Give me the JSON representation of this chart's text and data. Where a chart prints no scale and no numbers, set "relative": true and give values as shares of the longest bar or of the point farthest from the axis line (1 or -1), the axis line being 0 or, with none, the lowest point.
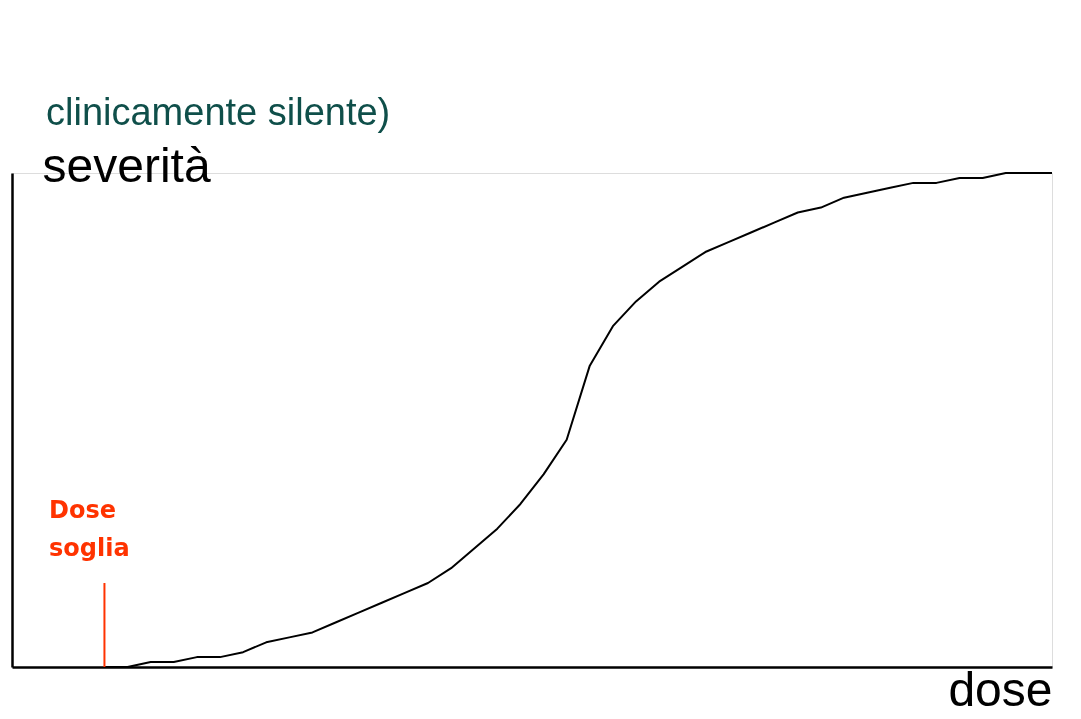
{
  "chart_data": {
    "type": "line",
    "relative": true,
    "xlabel": "dose",
    "ylabel": "severità",
    "categories": [
      null,
      null,
      null,
      null,
      null,
      null,
      null,
      null,
      null,
      null,
      null,
      null,
      null,
      null,
      null,
      null,
      null,
      null,
      null,
      null,
      null,
      null,
      null,
      null,
      null,
      null,
      null,
      null,
      null,
      null,
      null,
      null,
      null,
      null,
      null,
      null,
      null,
      null,
      null,
      null,
      null,
      null,
      null,
      null,
      null,
      null
    ],
    "series": [
      {
        "color": "#000000",
        "values": [
          null,
          null,
          null,
          null,
          0,
          0.0,
          0.01,
          0.01,
          0.02,
          0.02,
          0.03,
          0.05,
          0.06,
          0.07,
          0.09,
          0.11,
          0.13,
          0.15,
          0.17,
          0.2,
          0.24,
          0.28,
          0.33,
          0.39,
          0.46,
          0.61,
          0.69,
          0.74,
          0.78,
          0.81,
          0.84,
          0.86,
          0.88,
          0.9,
          0.92,
          0.93,
          0.95,
          0.96,
          0.97,
          0.98,
          0.98,
          0.99,
          0.99,
          1.0,
          1.0,
          1.0
        ]
      }
    ],
    "annotations": [
      "clinicamente silente)",
      "Dose\nsoglia"
    ],
    "grid": false,
    "legend": false,
    "marker": "none",
    "line_style": "solid"
  }
}
